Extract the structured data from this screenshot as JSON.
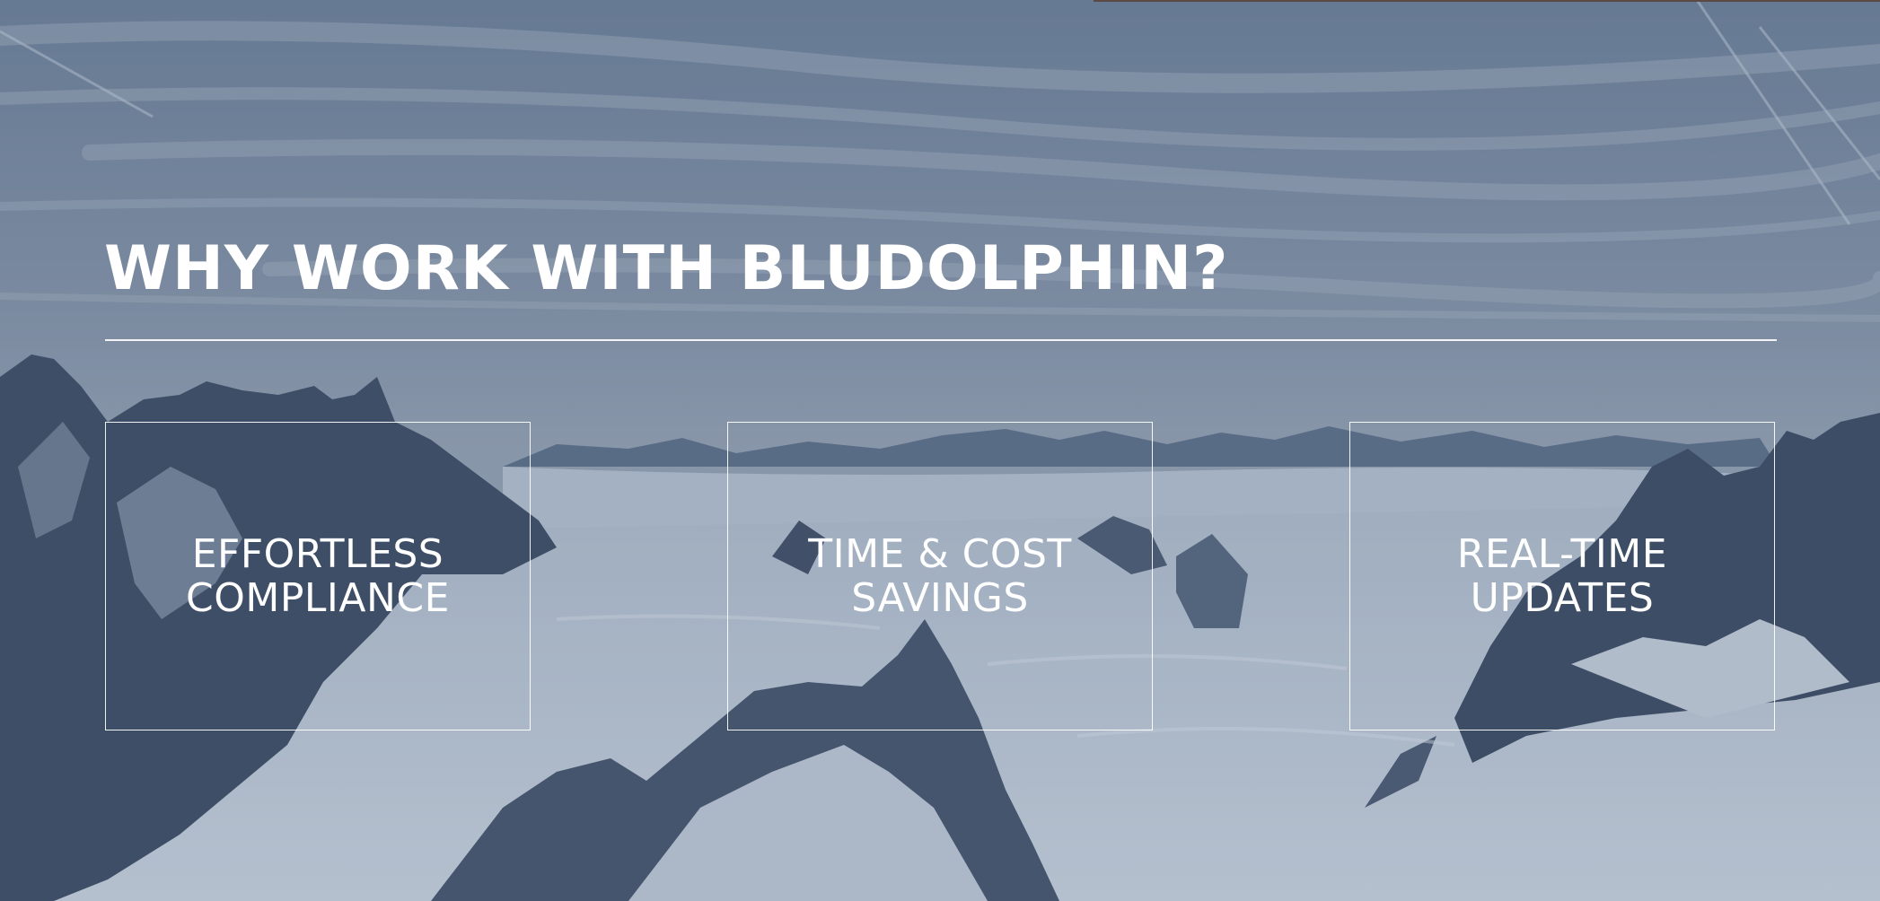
{
  "slide": {
    "title": "WHY WORK WITH BLUDOLPHIN?",
    "features": [
      {
        "line1": "EFFORTLESS",
        "line2": "COMPLIANCE"
      },
      {
        "line1": "TIME & COST",
        "line2": "SAVINGS"
      },
      {
        "line1": "REAL-TIME",
        "line2": "UPDATES"
      }
    ]
  },
  "background": {
    "subject": "snowy mountain range under a cloudy sky",
    "overlay_color": "#465f82"
  }
}
